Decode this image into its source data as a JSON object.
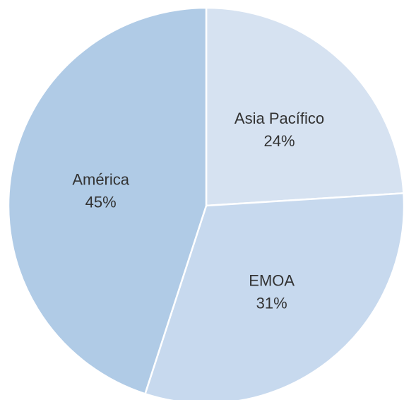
{
  "chart_data": {
    "type": "pie",
    "title": "",
    "slices": [
      {
        "label": "Asia Pacífico",
        "value": 24,
        "display": "24%",
        "color": "#d6e2f1"
      },
      {
        "label": "EMOA",
        "value": 31,
        "display": "31%",
        "color": "#c7d9ee"
      },
      {
        "label": "América",
        "value": 45,
        "display": "45%",
        "color": "#b0cbe6"
      }
    ],
    "start_direction": "12 o'clock",
    "direction": "clockwise",
    "legend": "none"
  }
}
